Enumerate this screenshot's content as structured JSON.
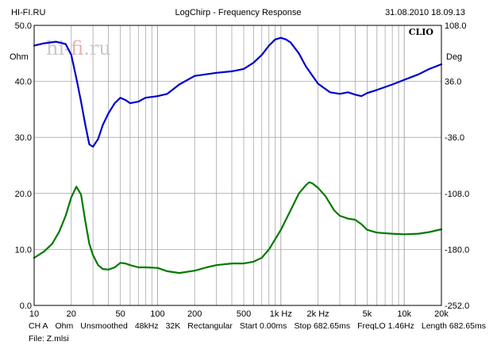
{
  "header": {
    "left": "HI-FI.RU",
    "center": "LogChirp - Frequency Response",
    "right": "31.08.2010 18.09.13"
  },
  "watermark": {
    "prefix": "hi",
    "accent": "-fi",
    "suffix": ".ru"
  },
  "badge": "CLIO",
  "axes": {
    "left_unit": "Ohm",
    "right_unit": "Deg",
    "x_tick_labels": [
      "10",
      "20",
      "50",
      "100",
      "200",
      "500",
      "1k Hz",
      "2k Hz",
      "5k",
      "10k",
      "20k"
    ],
    "y_left_tick_labels": [
      "0.0",
      "10.0",
      "20.0",
      "30.0",
      "40.0",
      "50.0"
    ],
    "y_right_tick_labels": [
      "-252.0",
      "-180.0",
      "-108.0",
      "-36.0",
      "36.0",
      "108.0"
    ]
  },
  "footer": {
    "line1": [
      "CH A",
      "Ohm",
      "Unsmoothed",
      "48kHz",
      "32K",
      "Rectangular",
      "Start 0.00ms",
      "Stop 682.65ms",
      "FreqLO 1.46Hz",
      "Length 682.65ms"
    ],
    "line2": "File: Z.mlsi"
  },
  "chart_data": {
    "type": "line",
    "title": "LogChirp - Frequency Response",
    "x_scale": "log",
    "xlim": [
      10,
      20000
    ],
    "ylim_left": [
      0,
      50
    ],
    "ylim_right": [
      -252,
      108
    ],
    "ylabel_left": "Ohm",
    "ylabel_right": "Deg",
    "grid": true,
    "series": [
      {
        "axis": "left",
        "color": "#007a00",
        "points": [
          [
            10,
            8.5
          ],
          [
            12,
            9.6
          ],
          [
            14,
            11.0
          ],
          [
            16,
            13.2
          ],
          [
            18,
            16.0
          ],
          [
            20,
            19.3
          ],
          [
            22,
            21.2
          ],
          [
            24,
            19.8
          ],
          [
            26,
            15.0
          ],
          [
            28,
            11.0
          ],
          [
            30,
            9.0
          ],
          [
            33,
            7.2
          ],
          [
            36,
            6.5
          ],
          [
            40,
            6.4
          ],
          [
            45,
            6.8
          ],
          [
            50,
            7.6
          ],
          [
            55,
            7.5
          ],
          [
            60,
            7.2
          ],
          [
            70,
            6.8
          ],
          [
            80,
            6.8
          ],
          [
            100,
            6.7
          ],
          [
            120,
            6.1
          ],
          [
            150,
            5.8
          ],
          [
            200,
            6.2
          ],
          [
            250,
            6.8
          ],
          [
            300,
            7.2
          ],
          [
            400,
            7.5
          ],
          [
            500,
            7.5
          ],
          [
            600,
            7.8
          ],
          [
            700,
            8.5
          ],
          [
            800,
            10.0
          ],
          [
            1000,
            13.5
          ],
          [
            1200,
            17.0
          ],
          [
            1400,
            20.0
          ],
          [
            1600,
            21.5
          ],
          [
            1700,
            22.0
          ],
          [
            1800,
            21.8
          ],
          [
            2000,
            21.0
          ],
          [
            2300,
            19.5
          ],
          [
            2700,
            17.0
          ],
          [
            3000,
            16.0
          ],
          [
            3500,
            15.5
          ],
          [
            4000,
            15.3
          ],
          [
            4500,
            14.5
          ],
          [
            5000,
            13.5
          ],
          [
            6000,
            13.0
          ],
          [
            8000,
            12.8
          ],
          [
            10000,
            12.7
          ],
          [
            13000,
            12.8
          ],
          [
            16000,
            13.1
          ],
          [
            20000,
            13.6
          ]
        ]
      },
      {
        "axis": "right",
        "color": "#0000cc",
        "points": [
          [
            10,
            82
          ],
          [
            12,
            85
          ],
          [
            15,
            87
          ],
          [
            18,
            84
          ],
          [
            20,
            70
          ],
          [
            22,
            40
          ],
          [
            24,
            10
          ],
          [
            26,
            -20
          ],
          [
            28,
            -45
          ],
          [
            30,
            -48
          ],
          [
            33,
            -38
          ],
          [
            36,
            -20
          ],
          [
            40,
            -5
          ],
          [
            45,
            8
          ],
          [
            50,
            15
          ],
          [
            55,
            12
          ],
          [
            60,
            8
          ],
          [
            70,
            10
          ],
          [
            80,
            15
          ],
          [
            100,
            17
          ],
          [
            120,
            20
          ],
          [
            150,
            32
          ],
          [
            200,
            43
          ],
          [
            300,
            47
          ],
          [
            400,
            49
          ],
          [
            500,
            52
          ],
          [
            600,
            60
          ],
          [
            700,
            70
          ],
          [
            800,
            82
          ],
          [
            900,
            90
          ],
          [
            1000,
            92
          ],
          [
            1100,
            90
          ],
          [
            1200,
            86
          ],
          [
            1400,
            72
          ],
          [
            1600,
            55
          ],
          [
            2000,
            33
          ],
          [
            2500,
            22
          ],
          [
            3000,
            20
          ],
          [
            3500,
            22
          ],
          [
            4000,
            19
          ],
          [
            4500,
            17
          ],
          [
            5000,
            21
          ],
          [
            6000,
            25
          ],
          [
            8000,
            32
          ],
          [
            10000,
            38
          ],
          [
            13000,
            45
          ],
          [
            16000,
            52
          ],
          [
            20000,
            58
          ]
        ]
      }
    ]
  }
}
